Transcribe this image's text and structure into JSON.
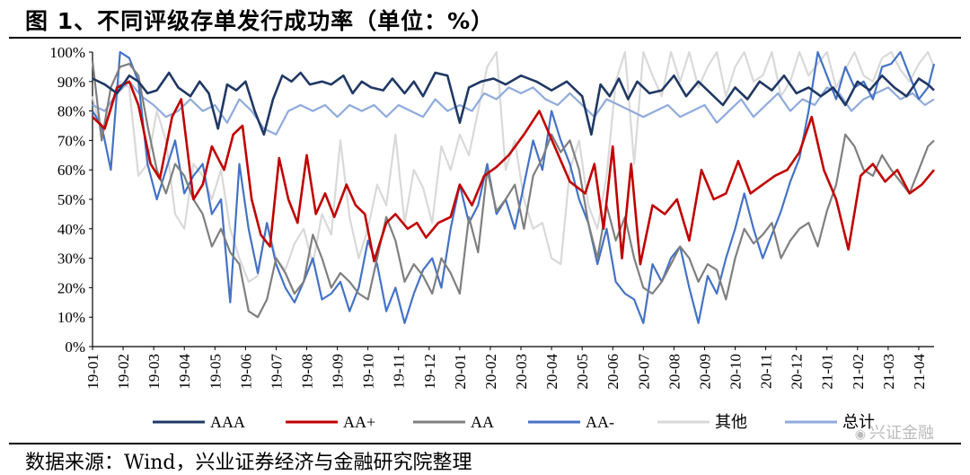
{
  "header": {
    "title": "图 1、不同评级存单发行成功率（单位：%）"
  },
  "footer": {
    "source": "数据来源：Wind，兴业证券经济与金融研究院整理"
  },
  "watermark": {
    "text": "兴证金融",
    "icon": "wechat-icon"
  },
  "chart_data": {
    "type": "line",
    "title": "图 1、不同评级存单发行成功率（单位：%）",
    "ylabel": "%",
    "xlabel": "",
    "ylim": [
      0,
      100
    ],
    "y_ticks": [
      "0%",
      "10%",
      "20%",
      "30%",
      "40%",
      "50%",
      "60%",
      "70%",
      "80%",
      "90%",
      "100%"
    ],
    "x_ticks": [
      "19-01",
      "19-02",
      "19-03",
      "19-04",
      "19-05",
      "19-06",
      "19-07",
      "19-08",
      "19-09",
      "19-10",
      "19-11",
      "19-12",
      "20-01",
      "20-02",
      "20-03",
      "20-04",
      "20-05",
      "20-06",
      "20-07",
      "20-08",
      "20-09",
      "20-10",
      "20-11",
      "20-12",
      "21-01",
      "21-02",
      "21-03",
      "21-04"
    ],
    "x_range": [
      0,
      27.5
    ],
    "series": [
      {
        "name": "AAA",
        "color": "#203864",
        "x": [
          0,
          0.4,
          0.8,
          1.2,
          1.5,
          1.8,
          2.1,
          2.5,
          2.8,
          3.2,
          3.5,
          3.8,
          4.1,
          4.4,
          4.7,
          5.0,
          5.3,
          5.6,
          5.9,
          6.2,
          6.5,
          6.8,
          7.1,
          7.5,
          7.8,
          8.2,
          8.5,
          8.8,
          9.1,
          9.5,
          9.8,
          10.2,
          10.5,
          10.8,
          11.2,
          11.6,
          12.0,
          12.3,
          12.7,
          13.1,
          13.5,
          14.0,
          14.5,
          15.0,
          15.5,
          16.0,
          16.3,
          16.6,
          16.9,
          17.2,
          17.5,
          17.8,
          18.2,
          18.6,
          19.0,
          19.4,
          19.8,
          20.2,
          20.6,
          21.0,
          21.4,
          21.8,
          22.2,
          22.6,
          23.0,
          23.4,
          23.8,
          24.2,
          24.6,
          25.0,
          25.4,
          25.8,
          26.2,
          26.6,
          27.0,
          27.3,
          27.5
        ],
        "y": [
          91,
          89,
          86,
          92,
          90,
          86,
          87,
          93,
          88,
          85,
          90,
          86,
          74,
          89,
          87,
          90,
          80,
          72,
          84,
          92,
          90,
          93,
          89,
          90,
          89,
          92,
          86,
          90,
          88,
          87,
          91,
          86,
          90,
          85,
          93,
          92,
          76,
          88,
          90,
          91,
          89,
          92,
          90,
          87,
          90,
          85,
          72,
          89,
          85,
          91,
          84,
          90,
          86,
          87,
          92,
          85,
          90,
          86,
          82,
          88,
          84,
          90,
          87,
          92,
          86,
          88,
          85,
          88,
          82,
          90,
          87,
          92,
          88,
          85,
          91,
          89,
          87
        ]
      },
      {
        "name": "AA+",
        "color": "#c00000",
        "x": [
          0,
          0.4,
          0.8,
          1.2,
          1.5,
          1.9,
          2.2,
          2.6,
          2.9,
          3.3,
          3.6,
          3.9,
          4.3,
          4.6,
          4.9,
          5.2,
          5.5,
          5.8,
          6.1,
          6.4,
          6.7,
          7.0,
          7.3,
          7.6,
          7.9,
          8.3,
          8.6,
          8.9,
          9.2,
          9.6,
          9.9,
          10.3,
          10.6,
          10.9,
          11.3,
          11.7,
          12.0,
          12.4,
          12.8,
          13.2,
          13.6,
          14.1,
          14.6,
          15.1,
          15.6,
          16.1,
          16.4,
          16.7,
          17.0,
          17.3,
          17.6,
          17.9,
          18.3,
          18.7,
          19.1,
          19.5,
          19.9,
          20.3,
          20.7,
          21.1,
          21.5,
          21.9,
          22.3,
          22.7,
          23.1,
          23.5,
          23.9,
          24.3,
          24.7,
          25.1,
          25.5,
          25.9,
          26.3,
          26.7,
          27.1,
          27.5
        ],
        "y": [
          78,
          74,
          88,
          90,
          82,
          62,
          57,
          78,
          84,
          50,
          55,
          68,
          60,
          72,
          75,
          50,
          38,
          34,
          64,
          50,
          42,
          65,
          45,
          52,
          44,
          55,
          48,
          45,
          29,
          42,
          45,
          40,
          42,
          37,
          42,
          44,
          55,
          48,
          58,
          61,
          65,
          72,
          80,
          68,
          56,
          52,
          62,
          40,
          68,
          30,
          62,
          28,
          48,
          45,
          50,
          36,
          60,
          50,
          52,
          63,
          52,
          55,
          58,
          60,
          66,
          78,
          60,
          50,
          33,
          58,
          62,
          56,
          60,
          52,
          55,
          60
        ]
      },
      {
        "name": "AA",
        "color": "#7f7f7f",
        "x": [
          0,
          0.3,
          0.6,
          0.9,
          1.2,
          1.5,
          1.8,
          2.1,
          2.4,
          2.7,
          3.0,
          3.3,
          3.6,
          3.9,
          4.2,
          4.5,
          4.8,
          5.1,
          5.4,
          5.7,
          6.0,
          6.3,
          6.6,
          6.9,
          7.2,
          7.5,
          7.8,
          8.1,
          8.4,
          8.7,
          9.0,
          9.3,
          9.6,
          9.9,
          10.2,
          10.5,
          10.8,
          11.1,
          11.4,
          11.7,
          12.0,
          12.3,
          12.6,
          12.9,
          13.2,
          13.5,
          13.8,
          14.1,
          14.4,
          14.7,
          15.0,
          15.3,
          15.6,
          15.9,
          16.2,
          16.5,
          16.8,
          17.1,
          17.4,
          17.7,
          18.0,
          18.3,
          18.6,
          18.9,
          19.2,
          19.5,
          19.8,
          20.1,
          20.4,
          20.7,
          21.0,
          21.3,
          21.6,
          21.9,
          22.2,
          22.5,
          22.8,
          23.1,
          23.4,
          23.7,
          24.0,
          24.3,
          24.6,
          24.9,
          25.2,
          25.5,
          25.8,
          26.1,
          26.4,
          26.7,
          27.0,
          27.3,
          27.5
        ],
        "y": [
          97,
          70,
          88,
          95,
          96,
          92,
          75,
          60,
          52,
          62,
          58,
          50,
          45,
          34,
          40,
          32,
          28,
          12,
          10,
          16,
          30,
          25,
          18,
          22,
          38,
          30,
          20,
          25,
          22,
          18,
          16,
          30,
          44,
          36,
          22,
          28,
          24,
          18,
          30,
          25,
          18,
          44,
          32,
          60,
          46,
          50,
          55,
          40,
          58,
          64,
          72,
          66,
          70,
          60,
          42,
          30,
          48,
          36,
          44,
          30,
          20,
          18,
          22,
          28,
          34,
          30,
          22,
          28,
          26,
          16,
          30,
          40,
          35,
          38,
          42,
          30,
          36,
          40,
          42,
          34,
          46,
          55,
          72,
          68,
          60,
          58,
          65,
          60,
          56,
          52,
          60,
          68,
          70
        ]
      },
      {
        "name": "AA-",
        "color": "#4472c4",
        "x": [
          0,
          0.3,
          0.6,
          0.9,
          1.2,
          1.5,
          1.8,
          2.1,
          2.4,
          2.7,
          3.0,
          3.3,
          3.6,
          3.9,
          4.2,
          4.5,
          4.8,
          5.1,
          5.4,
          5.7,
          6.0,
          6.3,
          6.6,
          6.9,
          7.2,
          7.5,
          7.8,
          8.1,
          8.4,
          8.7,
          9.0,
          9.3,
          9.6,
          9.9,
          10.2,
          10.5,
          10.8,
          11.1,
          11.4,
          11.7,
          12.0,
          12.3,
          12.6,
          12.9,
          13.2,
          13.5,
          13.8,
          14.1,
          14.4,
          14.7,
          15.0,
          15.3,
          15.6,
          15.9,
          16.2,
          16.5,
          16.8,
          17.1,
          17.4,
          17.7,
          18.0,
          18.3,
          18.6,
          18.9,
          19.2,
          19.5,
          19.8,
          20.1,
          20.4,
          20.7,
          21.0,
          21.3,
          21.6,
          21.9,
          22.2,
          22.5,
          22.8,
          23.1,
          23.4,
          23.7,
          24.0,
          24.3,
          24.6,
          24.9,
          25.2,
          25.5,
          25.8,
          26.1,
          26.4,
          26.7,
          27.0,
          27.3,
          27.5
        ],
        "y": [
          80,
          75,
          60,
          100,
          98,
          90,
          62,
          50,
          60,
          70,
          52,
          58,
          62,
          45,
          50,
          15,
          62,
          40,
          25,
          42,
          28,
          20,
          15,
          22,
          30,
          16,
          18,
          22,
          12,
          20,
          36,
          28,
          12,
          20,
          8,
          18,
          26,
          30,
          20,
          40,
          55,
          42,
          48,
          62,
          45,
          50,
          40,
          55,
          70,
          60,
          80,
          70,
          62,
          50,
          42,
          28,
          40,
          22,
          18,
          16,
          8,
          28,
          22,
          30,
          34,
          20,
          8,
          24,
          18,
          30,
          40,
          52,
          40,
          30,
          38,
          46,
          56,
          64,
          80,
          100,
          92,
          84,
          95,
          88,
          90,
          84,
          95,
          96,
          100,
          92,
          84,
          88,
          96
        ]
      },
      {
        "name": "其他",
        "color": "#d9d9d9",
        "x": [
          0,
          0.3,
          0.6,
          0.9,
          1.2,
          1.5,
          1.8,
          2.1,
          2.4,
          2.7,
          3.0,
          3.3,
          3.6,
          3.9,
          4.2,
          4.5,
          4.8,
          5.1,
          5.4,
          5.7,
          6.0,
          6.3,
          6.6,
          6.9,
          7.2,
          7.5,
          7.8,
          8.1,
          8.4,
          8.7,
          9.0,
          9.3,
          9.6,
          9.9,
          10.2,
          10.5,
          10.8,
          11.1,
          11.4,
          11.7,
          12.0,
          12.3,
          12.6,
          12.9,
          13.2,
          13.5,
          13.8,
          14.1,
          14.4,
          14.7,
          15.0,
          15.3,
          15.6,
          15.9,
          16.2,
          16.5,
          16.8,
          17.1,
          17.4,
          17.7,
          18.0,
          18.3,
          18.6,
          18.9,
          19.2,
          19.5,
          19.8,
          20.1,
          20.4,
          20.7,
          21.0,
          21.3,
          21.6,
          21.9,
          22.2,
          22.5,
          22.8,
          23.1,
          23.4,
          23.7,
          24.0,
          24.3,
          24.6,
          24.9,
          25.2,
          25.5,
          25.8,
          26.1,
          26.4,
          26.7,
          27.0,
          27.3,
          27.5
        ],
        "y": [
          85,
          72,
          80,
          90,
          88,
          58,
          62,
          80,
          70,
          45,
          40,
          62,
          58,
          50,
          60,
          40,
          30,
          22,
          24,
          42,
          30,
          26,
          35,
          40,
          28,
          45,
          38,
          70,
          44,
          30,
          40,
          55,
          48,
          72,
          42,
          60,
          54,
          42,
          68,
          60,
          72,
          65,
          80,
          95,
          100,
          60,
          70,
          50,
          40,
          42,
          30,
          28,
          60,
          70,
          48,
          40,
          58,
          90,
          100,
          62,
          100,
          92,
          85,
          100,
          90,
          100,
          88,
          95,
          100,
          85,
          95,
          100,
          90,
          92,
          100,
          85,
          90,
          100,
          92,
          96,
          100,
          88,
          94,
          100,
          92,
          90,
          98,
          100,
          94,
          90,
          96,
          100,
          95
        ]
      },
      {
        "name": "总计",
        "color": "#8faadc",
        "x": [
          0,
          0.4,
          0.8,
          1.2,
          1.6,
          2.0,
          2.4,
          2.8,
          3.2,
          3.6,
          4.0,
          4.4,
          4.8,
          5.2,
          5.6,
          6.0,
          6.4,
          6.8,
          7.2,
          7.6,
          8.0,
          8.4,
          8.8,
          9.2,
          9.6,
          10.0,
          10.4,
          10.8,
          11.2,
          11.6,
          12.0,
          12.4,
          12.8,
          13.2,
          13.6,
          14.0,
          14.4,
          14.8,
          15.2,
          15.6,
          16.0,
          16.4,
          16.8,
          17.2,
          17.6,
          18.0,
          18.4,
          18.8,
          19.2,
          19.6,
          20.0,
          20.4,
          20.8,
          21.2,
          21.6,
          22.0,
          22.4,
          22.8,
          23.2,
          23.6,
          24.0,
          24.4,
          24.8,
          25.2,
          25.6,
          26.0,
          26.4,
          26.8,
          27.2,
          27.5
        ],
        "y": [
          82,
          80,
          86,
          90,
          85,
          82,
          78,
          80,
          84,
          80,
          82,
          76,
          84,
          80,
          74,
          72,
          80,
          82,
          80,
          82,
          78,
          82,
          80,
          82,
          78,
          82,
          80,
          78,
          84,
          80,
          82,
          80,
          86,
          84,
          88,
          86,
          88,
          84,
          82,
          86,
          82,
          78,
          84,
          82,
          80,
          78,
          80,
          82,
          78,
          80,
          82,
          76,
          80,
          84,
          78,
          82,
          86,
          80,
          84,
          82,
          88,
          86,
          80,
          84,
          86,
          88,
          84,
          86,
          82,
          84
        ]
      }
    ],
    "legend": {
      "position": "bottom",
      "entries": [
        "AAA",
        "AA+",
        "AA",
        "AA-",
        "其他",
        "总计"
      ]
    }
  }
}
